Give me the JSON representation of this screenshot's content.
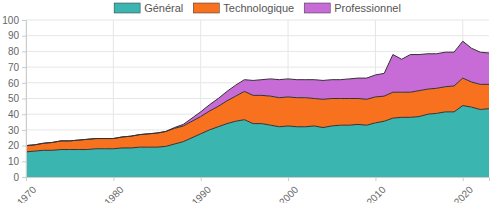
{
  "chart_data": {
    "type": "area",
    "stacked": true,
    "grid": true,
    "legend": "top",
    "x": [
      1970,
      1971,
      1972,
      1973,
      1974,
      1975,
      1976,
      1977,
      1978,
      1979,
      1980,
      1981,
      1982,
      1983,
      1984,
      1985,
      1986,
      1987,
      1988,
      1989,
      1990,
      1991,
      1992,
      1993,
      1994,
      1995,
      1996,
      1997,
      1998,
      1999,
      2000,
      2001,
      2002,
      2003,
      2004,
      2005,
      2006,
      2007,
      2008,
      2009,
      2010,
      2011,
      2012,
      2013,
      2014,
      2015,
      2016,
      2017,
      2018,
      2019,
      2020,
      2021,
      2022,
      2023
    ],
    "series": [
      {
        "name": "Général",
        "color": "#3ab5b0",
        "values": [
          16,
          16.5,
          17,
          17,
          17.5,
          17.5,
          17.5,
          17.5,
          18,
          18,
          18,
          18.5,
          18.5,
          19,
          19,
          19,
          19.5,
          21,
          22.5,
          25,
          27.5,
          30,
          32,
          34,
          35.5,
          36.5,
          34,
          34,
          33,
          32,
          32.5,
          32,
          32,
          32.5,
          31.5,
          32.5,
          33,
          33,
          33.5,
          33,
          34.5,
          35.5,
          37.5,
          38,
          38,
          38.5,
          40,
          40.5,
          41.5,
          41.5,
          45.5,
          44.5,
          43,
          43.5
        ]
      },
      {
        "name": "Technologique",
        "color": "#f7711f",
        "values": [
          4,
          4,
          4.5,
          5,
          5.5,
          5.5,
          6,
          6.5,
          6.5,
          6.5,
          6.5,
          7,
          7.5,
          8,
          8.5,
          9,
          9.5,
          10,
          10,
          10.5,
          11,
          12,
          13,
          14.5,
          16,
          18,
          18,
          18,
          18.5,
          18.5,
          18.5,
          18.5,
          18.5,
          17.5,
          18,
          17.5,
          17,
          17,
          16.5,
          16.5,
          16.5,
          16,
          16.5,
          16,
          16,
          16.5,
          16,
          16,
          16,
          16.5,
          17.5,
          16,
          16,
          15.5
        ]
      },
      {
        "name": "Professionnel",
        "color": "#c76bd6",
        "values": [
          0,
          0,
          0,
          0,
          0,
          0,
          0,
          0,
          0,
          0,
          0,
          0,
          0,
          0,
          0,
          0,
          0,
          0.5,
          1,
          2,
          3,
          4,
          5,
          6,
          7,
          7.5,
          9.5,
          10,
          11,
          11.5,
          11.5,
          11.5,
          11.5,
          12,
          12,
          12,
          12,
          12.5,
          13,
          13.5,
          14,
          14.5,
          24,
          21,
          24,
          23,
          22.5,
          22,
          22,
          21.5,
          23.5,
          21.5,
          20.5,
          20
        ]
      }
    ],
    "xlim": [
      1970,
      2023
    ],
    "xticks": [
      1970,
      1980,
      1990,
      2000,
      2010,
      2020
    ],
    "ylim": [
      0,
      100
    ],
    "yticks": [
      0,
      10,
      20,
      30,
      40,
      50,
      60,
      70,
      80,
      90,
      100
    ]
  }
}
